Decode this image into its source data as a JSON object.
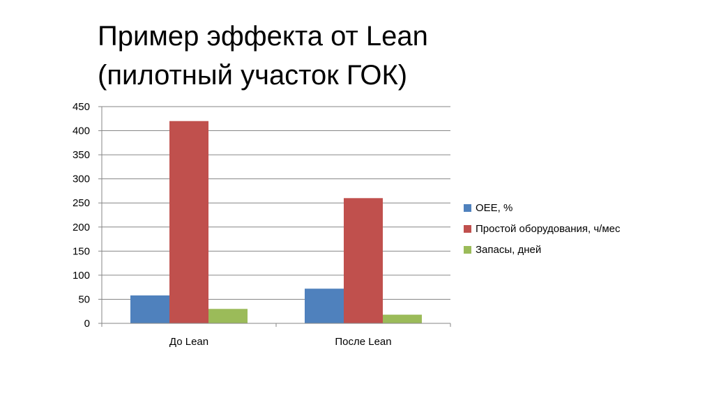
{
  "slide": {
    "title_line1": "Пример эффекта от Lean",
    "title_line2": "(пилотный участок ГОК)"
  },
  "chart_data": {
    "type": "bar",
    "title": "",
    "xlabel": "",
    "ylabel": "",
    "categories": [
      "До Lean",
      "После Lean"
    ],
    "series": [
      {
        "name": "OEE, %",
        "values": [
          58,
          72
        ],
        "color": "#4F81BD"
      },
      {
        "name": "Простой оборудования, ч/мес",
        "values": [
          420,
          260
        ],
        "color": "#C0504D"
      },
      {
        "name": "Запасы, дней",
        "values": [
          30,
          18
        ],
        "color": "#9BBB59"
      }
    ],
    "ylim": [
      0,
      450
    ],
    "yticks": [
      "0",
      "50",
      "100",
      "150",
      "200",
      "250",
      "300",
      "350",
      "400",
      "450"
    ],
    "grid": true,
    "legend_position": "right"
  }
}
